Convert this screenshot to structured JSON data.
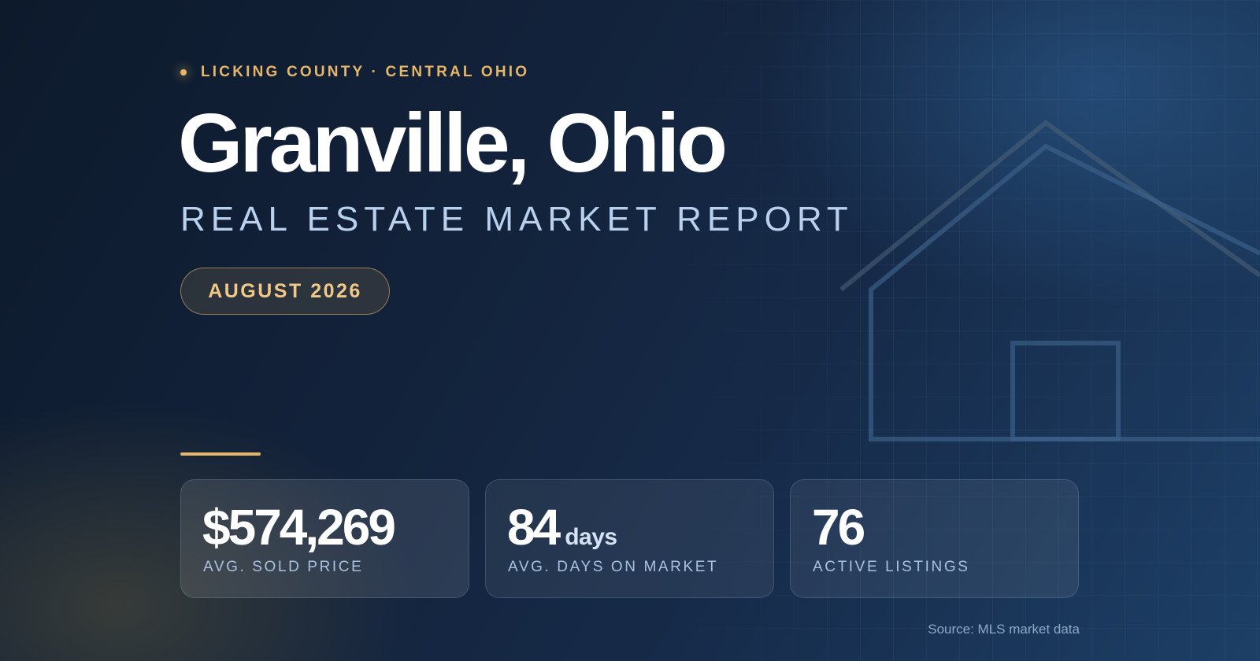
{
  "header": {
    "eyebrow": "LICKING COUNTY · CENTRAL OHIO",
    "title": "Granville, Ohio",
    "subtitle": "REAL ESTATE MARKET REPORT",
    "date": "AUGUST 2026"
  },
  "stats": [
    {
      "value": "$574,269",
      "unit": "",
      "label": "AVG. SOLD PRICE"
    },
    {
      "value": "84",
      "unit": "days",
      "label": "AVG. DAYS ON MARKET"
    },
    {
      "value": "76",
      "unit": "",
      "label": "ACTIVE LISTINGS"
    }
  ],
  "footer": {
    "source": "Source: MLS market data"
  },
  "colors": {
    "accent_gold": "#e7b667",
    "background_navy": "#13233c",
    "subtitle_blue": "#b9d1ee",
    "label_blue": "#a9c2e2"
  },
  "icons": {
    "eyebrow_marker": "dot-icon",
    "background_art": "house-outline-icon"
  }
}
